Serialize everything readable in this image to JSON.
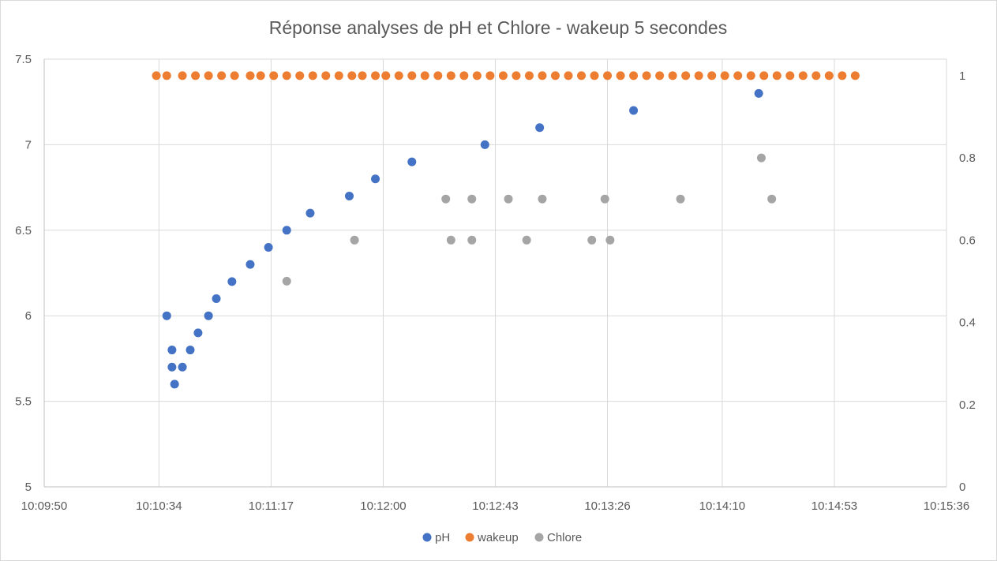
{
  "chart_data": {
    "type": "scatter",
    "title": "Réponse analyses de pH et Chlore - wakeup 5 secondes",
    "x_axis": {
      "type": "time",
      "ticks": [
        "10:09:50",
        "10:10:34",
        "10:11:17",
        "10:12:00",
        "10:12:43",
        "10:13:26",
        "10:14:10",
        "10:14:53",
        "10:15:36"
      ],
      "range": [
        "10:09:50",
        "10:15:36"
      ]
    },
    "y_axis_primary": {
      "ticks": [
        "5",
        "5.5",
        "6",
        "6.5",
        "7",
        "7.5"
      ],
      "range": [
        5,
        7.5
      ]
    },
    "y_axis_secondary": {
      "ticks": [
        "0",
        "0.2",
        "0.4",
        "0.6",
        "0.8",
        "1"
      ],
      "range": [
        0,
        1.04
      ]
    },
    "grid": true,
    "legend_position": "bottom",
    "colors": {
      "pH": "#4472C4",
      "wakeup": "#ED7D31",
      "Chlore": "#A5A5A5"
    },
    "series": [
      {
        "name": "pH",
        "axis": "primary",
        "points": [
          {
            "x": "10:10:37",
            "y": 6.0
          },
          {
            "x": "10:10:39",
            "y": 5.8
          },
          {
            "x": "10:10:39",
            "y": 5.7
          },
          {
            "x": "10:10:40",
            "y": 5.6
          },
          {
            "x": "10:10:43",
            "y": 5.7
          },
          {
            "x": "10:10:46",
            "y": 5.8
          },
          {
            "x": "10:10:49",
            "y": 5.9
          },
          {
            "x": "10:10:53",
            "y": 6.0
          },
          {
            "x": "10:10:56",
            "y": 6.1
          },
          {
            "x": "10:11:02",
            "y": 6.2
          },
          {
            "x": "10:11:09",
            "y": 6.3
          },
          {
            "x": "10:11:16",
            "y": 6.4
          },
          {
            "x": "10:11:23",
            "y": 6.5
          },
          {
            "x": "10:11:32",
            "y": 6.6
          },
          {
            "x": "10:11:47",
            "y": 6.7
          },
          {
            "x": "10:11:57",
            "y": 6.8
          },
          {
            "x": "10:12:11",
            "y": 6.9
          },
          {
            "x": "10:12:39",
            "y": 7.0
          },
          {
            "x": "10:13:00",
            "y": 7.1
          },
          {
            "x": "10:13:36",
            "y": 7.2
          },
          {
            "x": "10:14:24",
            "y": 7.3
          }
        ]
      },
      {
        "name": "wakeup",
        "axis": "secondary",
        "points": [
          {
            "x": "10:10:33",
            "y": 1
          },
          {
            "x": "10:10:37",
            "y": 1
          },
          {
            "x": "10:10:43",
            "y": 1
          },
          {
            "x": "10:10:48",
            "y": 1
          },
          {
            "x": "10:10:53",
            "y": 1
          },
          {
            "x": "10:10:58",
            "y": 1
          },
          {
            "x": "10:11:03",
            "y": 1
          },
          {
            "x": "10:11:09",
            "y": 1
          },
          {
            "x": "10:11:13",
            "y": 1
          },
          {
            "x": "10:11:18",
            "y": 1
          },
          {
            "x": "10:11:23",
            "y": 1
          },
          {
            "x": "10:11:28",
            "y": 1
          },
          {
            "x": "10:11:33",
            "y": 1
          },
          {
            "x": "10:11:38",
            "y": 1
          },
          {
            "x": "10:11:43",
            "y": 1
          },
          {
            "x": "10:11:48",
            "y": 1
          },
          {
            "x": "10:11:52",
            "y": 1
          },
          {
            "x": "10:11:57",
            "y": 1
          },
          {
            "x": "10:12:01",
            "y": 1
          },
          {
            "x": "10:12:06",
            "y": 1
          },
          {
            "x": "10:12:11",
            "y": 1
          },
          {
            "x": "10:12:16",
            "y": 1
          },
          {
            "x": "10:12:21",
            "y": 1
          },
          {
            "x": "10:12:26",
            "y": 1
          },
          {
            "x": "10:12:31",
            "y": 1
          },
          {
            "x": "10:12:36",
            "y": 1
          },
          {
            "x": "10:12:41",
            "y": 1
          },
          {
            "x": "10:12:46",
            "y": 1
          },
          {
            "x": "10:12:51",
            "y": 1
          },
          {
            "x": "10:12:56",
            "y": 1
          },
          {
            "x": "10:13:01",
            "y": 1
          },
          {
            "x": "10:13:06",
            "y": 1
          },
          {
            "x": "10:13:11",
            "y": 1
          },
          {
            "x": "10:13:16",
            "y": 1
          },
          {
            "x": "10:13:21",
            "y": 1
          },
          {
            "x": "10:13:26",
            "y": 1
          },
          {
            "x": "10:13:31",
            "y": 1
          },
          {
            "x": "10:13:36",
            "y": 1
          },
          {
            "x": "10:13:41",
            "y": 1
          },
          {
            "x": "10:13:46",
            "y": 1
          },
          {
            "x": "10:13:51",
            "y": 1
          },
          {
            "x": "10:13:56",
            "y": 1
          },
          {
            "x": "10:14:01",
            "y": 1
          },
          {
            "x": "10:14:06",
            "y": 1
          },
          {
            "x": "10:14:11",
            "y": 1
          },
          {
            "x": "10:14:16",
            "y": 1
          },
          {
            "x": "10:14:21",
            "y": 1
          },
          {
            "x": "10:14:26",
            "y": 1
          },
          {
            "x": "10:14:31",
            "y": 1
          },
          {
            "x": "10:14:36",
            "y": 1
          },
          {
            "x": "10:14:41",
            "y": 1
          },
          {
            "x": "10:14:46",
            "y": 1
          },
          {
            "x": "10:14:51",
            "y": 1
          },
          {
            "x": "10:14:56",
            "y": 1
          },
          {
            "x": "10:15:01",
            "y": 1
          }
        ]
      },
      {
        "name": "Chlore",
        "axis": "secondary",
        "points": [
          {
            "x": "10:11:23",
            "y": 0.5
          },
          {
            "x": "10:11:49",
            "y": 0.6
          },
          {
            "x": "10:12:24",
            "y": 0.7
          },
          {
            "x": "10:12:26",
            "y": 0.6
          },
          {
            "x": "10:12:34",
            "y": 0.7
          },
          {
            "x": "10:12:34",
            "y": 0.6
          },
          {
            "x": "10:12:48",
            "y": 0.7
          },
          {
            "x": "10:12:55",
            "y": 0.6
          },
          {
            "x": "10:13:01",
            "y": 0.7
          },
          {
            "x": "10:13:20",
            "y": 0.6
          },
          {
            "x": "10:13:25",
            "y": 0.7
          },
          {
            "x": "10:13:27",
            "y": 0.6
          },
          {
            "x": "10:13:54",
            "y": 0.7
          },
          {
            "x": "10:14:25",
            "y": 0.8
          },
          {
            "x": "10:14:29",
            "y": 0.7
          }
        ]
      }
    ]
  }
}
